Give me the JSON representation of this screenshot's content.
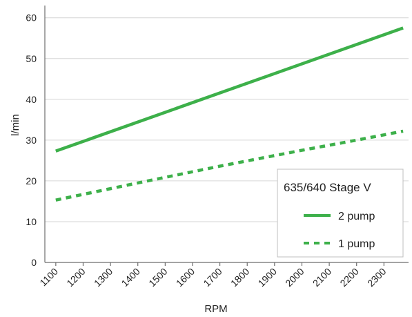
{
  "chart_data": {
    "type": "line",
    "xlabel": "RPM",
    "ylabel": "l/min",
    "x_ticks": [
      1100,
      1200,
      1300,
      1400,
      1500,
      1600,
      1700,
      1800,
      1900,
      2000,
      2100,
      2200,
      2300
    ],
    "y_ticks": [
      0,
      10,
      20,
      30,
      40,
      50,
      60
    ],
    "xlim": [
      1060,
      2390
    ],
    "ylim": [
      0,
      63
    ],
    "grid": "horizontal",
    "legend": {
      "title": "635/640 Stage V",
      "placement": "bottom-right"
    },
    "series": [
      {
        "name": "2 pump",
        "style": "solid",
        "color": "#3db04a",
        "points": [
          [
            1100,
            27.3
          ],
          [
            2370,
            57.5
          ]
        ]
      },
      {
        "name": "1 pump",
        "style": "dashed",
        "color": "#3db04a",
        "points": [
          [
            1100,
            15.3
          ],
          [
            1400,
            19.5
          ],
          [
            1700,
            23.6
          ],
          [
            2000,
            27.5
          ],
          [
            2200,
            30.0
          ],
          [
            2370,
            32.2
          ]
        ]
      }
    ]
  }
}
